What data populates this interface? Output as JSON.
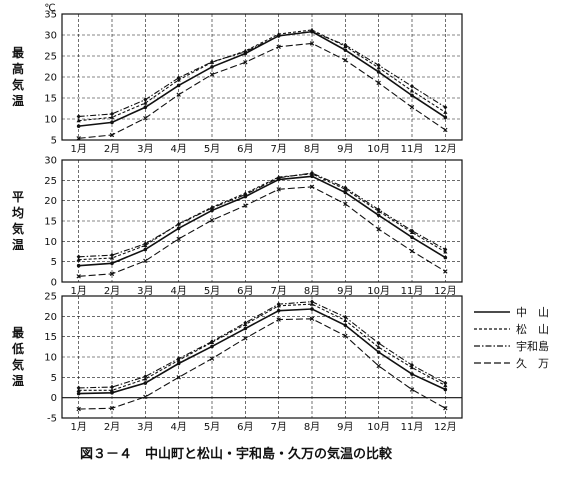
{
  "caption": "図３－４　中山町と松山・宇和島・久万の気温の比較",
  "unit": "℃",
  "months": [
    "1月",
    "2月",
    "3月",
    "4月",
    "5月",
    "6月",
    "7月",
    "8月",
    "9月",
    "10月",
    "11月",
    "12月"
  ],
  "legend": [
    {
      "name": "中　山",
      "dash": ""
    },
    {
      "name": "松　山",
      "dash": "3 2"
    },
    {
      "name": "宇和島",
      "dash": "6 2 1.5 2"
    },
    {
      "name": "久　万",
      "dash": "7 3"
    }
  ],
  "chart_data": [
    {
      "type": "line",
      "ylabel": "最高気温",
      "ylim": [
        5,
        35
      ],
      "yticks": [
        5,
        10,
        15,
        20,
        25,
        30,
        35
      ],
      "grid": true,
      "categories": [
        "1月",
        "2月",
        "3月",
        "4月",
        "5月",
        "6月",
        "7月",
        "8月",
        "9月",
        "10月",
        "11月",
        "12月"
      ],
      "series": [
        {
          "name": "中　山",
          "values": [
            8.3,
            9.2,
            12.8,
            18.0,
            22.4,
            25.6,
            29.8,
            30.8,
            26.4,
            21.2,
            15.6,
            10.4
          ]
        },
        {
          "name": "松　山",
          "values": [
            9.6,
            10.4,
            13.8,
            19.3,
            23.5,
            26.2,
            30.2,
            31.2,
            27.3,
            22.2,
            16.7,
            11.6
          ]
        },
        {
          "name": "宇和島",
          "values": [
            10.6,
            11.2,
            14.6,
            19.8,
            23.6,
            26.0,
            29.8,
            30.8,
            27.6,
            22.8,
            17.8,
            12.8
          ]
        },
        {
          "name": "久　万",
          "values": [
            5.4,
            6.2,
            10.2,
            15.8,
            20.6,
            23.5,
            27.2,
            28.0,
            24.0,
            18.6,
            12.8,
            7.4
          ]
        }
      ]
    },
    {
      "type": "line",
      "ylabel": "平均気温",
      "ylim": [
        0,
        30
      ],
      "yticks": [
        0,
        5,
        10,
        15,
        20,
        25,
        30
      ],
      "grid": true,
      "categories": [
        "1月",
        "2月",
        "3月",
        "4月",
        "5月",
        "6月",
        "7月",
        "8月",
        "9月",
        "10月",
        "11月",
        "12月"
      ],
      "series": [
        {
          "name": "中　山",
          "values": [
            4.0,
            4.6,
            8.0,
            13.2,
            17.6,
            21.0,
            25.2,
            26.0,
            22.0,
            16.4,
            11.0,
            6.0
          ]
        },
        {
          "name": "松　山",
          "values": [
            5.5,
            5.9,
            9.0,
            14.3,
            18.4,
            21.8,
            25.8,
            26.6,
            22.8,
            17.4,
            12.2,
            7.4
          ]
        },
        {
          "name": "宇和島",
          "values": [
            6.2,
            6.6,
            9.4,
            14.2,
            18.2,
            21.5,
            25.6,
            26.8,
            23.2,
            17.8,
            12.6,
            8.0
          ]
        },
        {
          "name": "久　万",
          "values": [
            1.4,
            2.0,
            5.2,
            10.6,
            15.2,
            18.8,
            22.8,
            23.4,
            19.2,
            13.0,
            7.6,
            2.6
          ]
        }
      ]
    },
    {
      "type": "line",
      "ylabel": "最低気温",
      "ylim": [
        -5,
        25
      ],
      "yticks": [
        -5,
        0,
        5,
        10,
        15,
        20,
        25
      ],
      "grid": true,
      "categories": [
        "1月",
        "2月",
        "3月",
        "4月",
        "5月",
        "6月",
        "7月",
        "8月",
        "9月",
        "10月",
        "11月",
        "12月"
      ],
      "series": [
        {
          "name": "中　山",
          "values": [
            1.0,
            1.2,
            3.6,
            8.4,
            12.6,
            17.0,
            21.4,
            21.8,
            17.8,
            11.2,
            5.8,
            2.0
          ]
        },
        {
          "name": "松　山",
          "values": [
            1.8,
            1.8,
            4.6,
            9.2,
            13.6,
            18.0,
            22.6,
            23.0,
            19.0,
            12.4,
            7.4,
            3.0
          ]
        },
        {
          "name": "宇和島",
          "values": [
            2.4,
            2.6,
            5.2,
            9.6,
            13.8,
            18.4,
            23.0,
            23.6,
            19.8,
            13.4,
            8.0,
            3.6
          ]
        },
        {
          "name": "久　万",
          "values": [
            -2.8,
            -2.6,
            0.2,
            5.0,
            9.6,
            14.6,
            19.2,
            19.4,
            15.2,
            7.8,
            2.0,
            -2.6
          ]
        }
      ]
    }
  ]
}
